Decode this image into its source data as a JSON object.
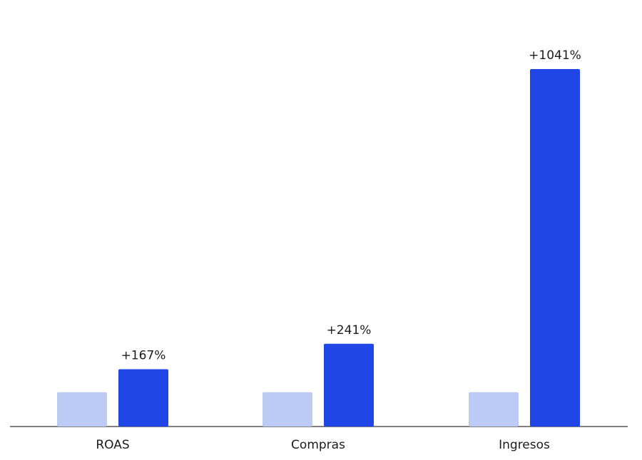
{
  "chart_data": {
    "type": "bar",
    "title": "",
    "xlabel": "",
    "ylabel": "",
    "categories": [
      "ROAS",
      "Compras",
      "Ingresos"
    ],
    "series": [
      {
        "values": [
          100,
          100,
          100
        ],
        "color": "#bccbf6"
      },
      {
        "values": [
          167,
          241,
          1041
        ],
        "color": "#2146e8"
      }
    ],
    "data_labels": [
      "+167%",
      "+241%",
      "+1041%"
    ],
    "ylim": [
      0,
      1100
    ],
    "grid": false,
    "legend": "none",
    "baseline_color": "#333333"
  }
}
